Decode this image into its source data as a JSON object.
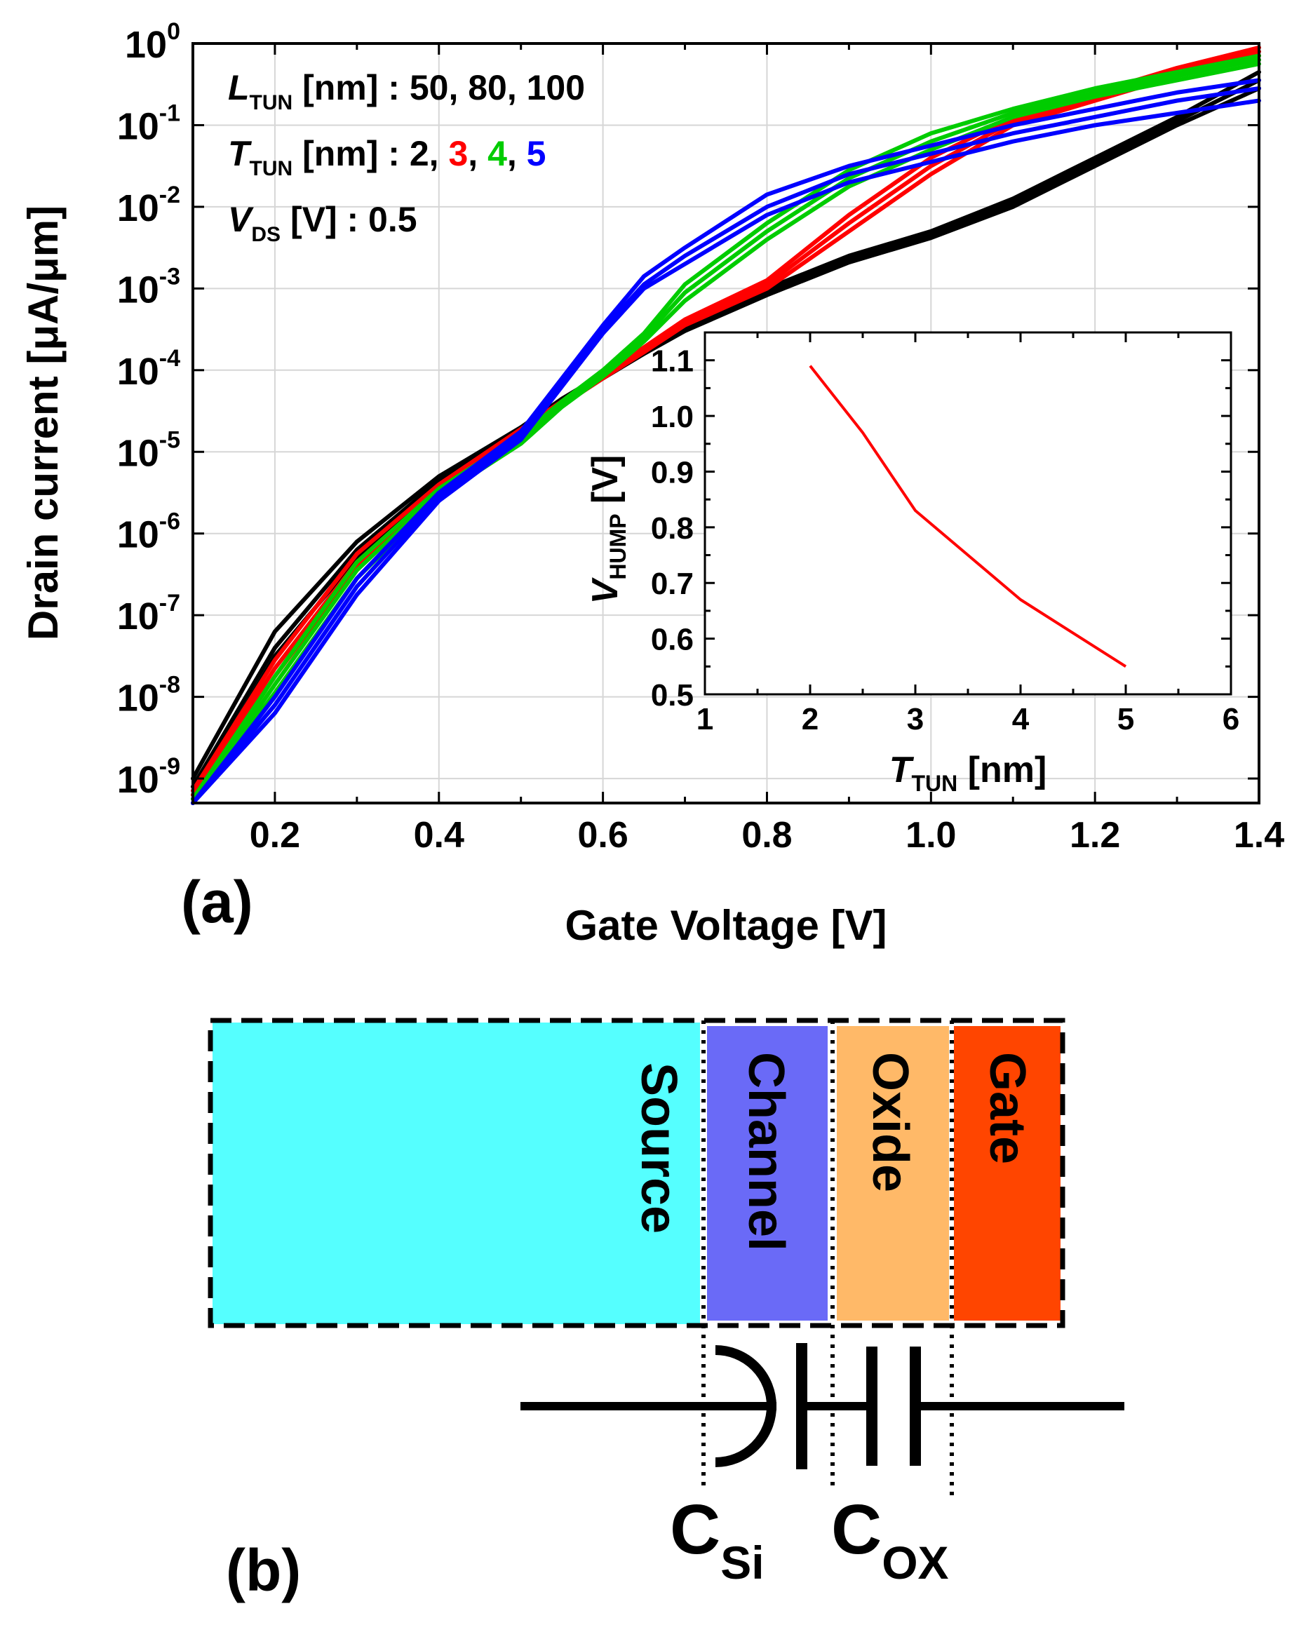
{
  "panel_a": {
    "label": "(a)",
    "annotations": {
      "ltun": {
        "sym": "L",
        "sub": "TUN",
        "text": " [nm] : 50, 80, 100"
      },
      "ttun": {
        "sym": "T",
        "sub": "TUN",
        "text": " [nm] : ",
        "values": [
          "2",
          "3",
          "4",
          "5"
        ],
        "sep": ", "
      },
      "vds": {
        "sym": "V",
        "sub": "DS",
        "text": " [V] : 0.5"
      }
    }
  },
  "panel_b": {
    "label": "(b)",
    "regions": [
      "Source",
      "Channel",
      "Oxide",
      "Gate"
    ],
    "cap_si": {
      "main": "C",
      "sub": "Si"
    },
    "cap_ox": {
      "main": "C",
      "sub": "OX"
    },
    "colors": {
      "source": "#55ffff",
      "channel": "#6a6af7",
      "oxide": "#ffb968",
      "gate": "#ff4500"
    }
  },
  "chart_data": [
    {
      "type": "line",
      "ylabel": "Drain current [μA/μm]",
      "xlabel": "Gate Voltage [V]",
      "xlim": [
        0.1,
        1.4
      ],
      "ylim_log10": [
        -9.3,
        0
      ],
      "xticks": [
        "0.2",
        "0.4",
        "0.6",
        "0.8",
        "1.0",
        "1.2",
        "1.4"
      ],
      "yticks": [
        {
          "exp": "0",
          "val": 0
        },
        {
          "exp": "-1",
          "val": -1
        },
        {
          "exp": "-2",
          "val": -2
        },
        {
          "exp": "-3",
          "val": -3
        },
        {
          "exp": "-4",
          "val": -4
        },
        {
          "exp": "-5",
          "val": -5
        },
        {
          "exp": "-6",
          "val": -6
        },
        {
          "exp": "-7",
          "val": -7
        },
        {
          "exp": "-8",
          "val": -8
        },
        {
          "exp": "-9",
          "val": -9
        }
      ],
      "x": [
        0.1,
        0.2,
        0.3,
        0.4,
        0.5,
        0.55,
        0.6,
        0.65,
        0.7,
        0.8,
        0.9,
        1.0,
        1.1,
        1.2,
        1.3,
        1.4
      ],
      "series": [
        {
          "name": "T_TUN = 2 nm",
          "color": "#000000",
          "log10_curves": [
            [
              -9.0,
              -7.2,
              -6.1,
              -5.3,
              -4.7,
              -4.35,
              -4.05,
              -3.75,
              -3.45,
              -3.0,
              -2.6,
              -2.3,
              -1.9,
              -1.4,
              -0.9,
              -0.35
            ],
            [
              -9.1,
              -7.4,
              -6.2,
              -5.35,
              -4.72,
              -4.4,
              -4.07,
              -3.78,
              -3.5,
              -3.05,
              -2.65,
              -2.35,
              -1.95,
              -1.45,
              -0.95,
              -0.45
            ],
            [
              -9.2,
              -7.5,
              -6.3,
              -5.4,
              -4.75,
              -4.42,
              -4.1,
              -3.8,
              -3.52,
              -3.08,
              -2.68,
              -2.38,
              -2.0,
              -1.5,
              -1.0,
              -0.55
            ]
          ]
        },
        {
          "name": "T_TUN = 3 nm",
          "color": "#ff0000",
          "log10_curves": [
            [
              -9.15,
              -7.55,
              -6.25,
              -5.4,
              -4.72,
              -4.38,
              -4.05,
              -3.72,
              -3.38,
              -2.9,
              -2.1,
              -1.4,
              -0.9,
              -0.6,
              -0.3,
              -0.05
            ],
            [
              -9.2,
              -7.65,
              -6.35,
              -5.45,
              -4.75,
              -4.4,
              -4.08,
              -3.75,
              -3.42,
              -2.95,
              -2.2,
              -1.5,
              -0.95,
              -0.65,
              -0.35,
              -0.1
            ],
            [
              -9.25,
              -7.75,
              -6.4,
              -5.5,
              -4.78,
              -4.43,
              -4.1,
              -3.78,
              -3.45,
              -3.0,
              -2.3,
              -1.6,
              -1.0,
              -0.7,
              -0.4,
              -0.15
            ]
          ]
        },
        {
          "name": "T_TUN = 4 nm",
          "color": "#00cc00",
          "log10_curves": [
            [
              -9.25,
              -7.75,
              -6.35,
              -5.45,
              -4.8,
              -4.38,
              -4.0,
              -3.55,
              -2.95,
              -2.2,
              -1.55,
              -1.1,
              -0.8,
              -0.55,
              -0.35,
              -0.15
            ],
            [
              -9.3,
              -7.85,
              -6.45,
              -5.5,
              -4.85,
              -4.42,
              -4.05,
              -3.6,
              -3.05,
              -2.3,
              -1.65,
              -1.2,
              -0.85,
              -0.6,
              -0.4,
              -0.2
            ],
            [
              -9.3,
              -7.95,
              -6.55,
              -5.55,
              -4.9,
              -4.45,
              -4.08,
              -3.65,
              -3.15,
              -2.4,
              -1.75,
              -1.3,
              -0.9,
              -0.65,
              -0.45,
              -0.25
            ]
          ]
        },
        {
          "name": "T_TUN = 5 nm",
          "color": "#0000ff",
          "log10_curves": [
            [
              -9.3,
              -8.0,
              -6.55,
              -5.5,
              -4.75,
              -4.1,
              -3.45,
              -2.85,
              -2.5,
              -1.85,
              -1.5,
              -1.25,
              -1.0,
              -0.8,
              -0.6,
              -0.45
            ],
            [
              -9.3,
              -8.1,
              -6.65,
              -5.55,
              -4.8,
              -4.15,
              -3.5,
              -2.95,
              -2.6,
              -2.0,
              -1.6,
              -1.35,
              -1.1,
              -0.9,
              -0.7,
              -0.55
            ],
            [
              -9.3,
              -8.2,
              -6.75,
              -5.6,
              -4.85,
              -4.2,
              -3.55,
              -3.0,
              -2.7,
              -2.1,
              -1.7,
              -1.45,
              -1.2,
              -1.0,
              -0.85,
              -0.7
            ]
          ]
        }
      ]
    },
    {
      "type": "line",
      "ylabel": "HUMP",
      "ylabel_symbol": "V",
      "ylabel_unit": " [V]",
      "xlabel_symbol": "T",
      "xlabel_sub": "TUN",
      "xlabel_unit": " [nm]",
      "xlim": [
        1,
        6
      ],
      "ylim": [
        0.5,
        1.15
      ],
      "xticks": [
        "1",
        "2",
        "3",
        "4",
        "5",
        "6"
      ],
      "yticks": [
        "0.5",
        "0.6",
        "0.7",
        "0.8",
        "0.9",
        "1.0",
        "1.1"
      ],
      "x": [
        2,
        2.5,
        3,
        3.5,
        4,
        4.5,
        5
      ],
      "y": [
        1.09,
        0.97,
        0.83,
        0.75,
        0.67,
        0.61,
        0.55
      ],
      "color": "#ff0000"
    }
  ]
}
